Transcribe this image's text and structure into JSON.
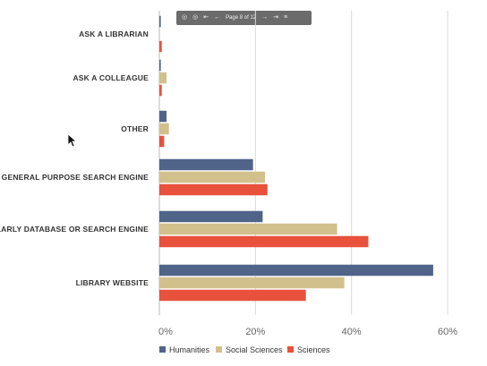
{
  "toolbar": {
    "page_label": "Page 8 of 12"
  },
  "chart_data": {
    "type": "bar",
    "orientation": "horizontal",
    "categories": [
      "ASK A LIBRARIAN",
      "ASK A COLLEAGUE",
      "OTHER",
      "GENERAL PURPOSE SEARCH ENGINE",
      "SCHOLARLY DATABASE OR SEARCH ENGINE",
      "LIBRARY WEBSITE"
    ],
    "series": [
      {
        "name": "Humanities",
        "color": "#4f6488",
        "values": [
          0.3,
          0.3,
          1.5,
          19.5,
          21.5,
          57.0
        ]
      },
      {
        "name": "Social Sciences",
        "color": "#d2c08c",
        "values": [
          0.0,
          1.5,
          2.0,
          22.0,
          37.0,
          38.5
        ]
      },
      {
        "name": "Sciences",
        "color": "#e8513c",
        "values": [
          0.5,
          0.5,
          1.0,
          22.5,
          43.5,
          30.5
        ]
      }
    ],
    "xlim": [
      0,
      60
    ],
    "xticks": [
      0,
      20,
      40,
      60
    ],
    "tick_labels": [
      "0%",
      "20%",
      "40%",
      "60%"
    ],
    "grid": true,
    "legend_position": "bottom"
  }
}
